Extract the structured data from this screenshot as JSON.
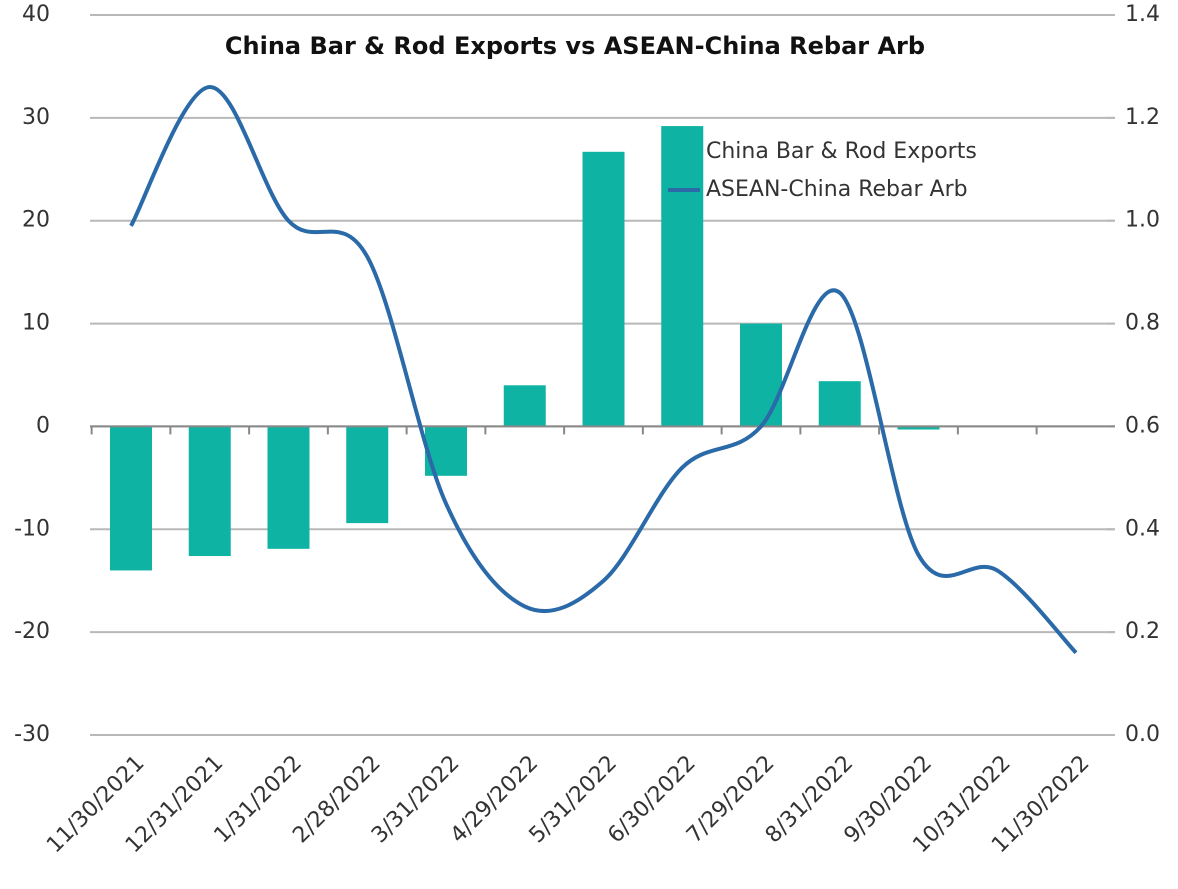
{
  "chart_data": {
    "type": "bar_line",
    "title": "China Bar & Rod Exports vs ASEAN-China Rebar Arb",
    "categories": [
      "11/30/2021",
      "12/31/2021",
      "1/31/2022",
      "2/28/2022",
      "3/31/2022",
      "4/29/2022",
      "5/31/2022",
      "6/30/2022",
      "7/29/2022",
      "8/31/2022",
      "9/30/2022",
      "10/31/2022",
      "11/30/2022"
    ],
    "series": [
      {
        "name": "China Bar & Rod Exports",
        "color": "#0fb3a3",
        "kind": "bar",
        "values": [
          -14,
          -12.6,
          -11.9,
          -9.4,
          -4.8,
          4.0,
          26.7,
          29.2,
          10.0,
          4.4,
          -0.3,
          null,
          null
        ]
      },
      {
        "name": "ASEAN-China Rebar Arb",
        "color": "#2a6aa8",
        "kind": "line",
        "axis": "y2",
        "values": [
          0.99,
          1.26,
          1.0,
          0.93,
          0.45,
          0.25,
          0.3,
          0.52,
          0.6,
          0.86,
          0.35,
          0.32,
          0.16
        ]
      }
    ],
    "ylim": [
      -30,
      40
    ],
    "yticks": [
      -30,
      -20,
      -10,
      0,
      10,
      20,
      30,
      40
    ],
    "y2lim": [
      0,
      1.4
    ],
    "y2ticks": [
      {
        "value": 0,
        "label": "0.0"
      },
      0.2,
      0.4,
      0.6,
      0.8,
      {
        "value": 1,
        "label": "1.0"
      },
      1.2,
      1.4
    ],
    "grid": true,
    "legend": "upper right"
  }
}
